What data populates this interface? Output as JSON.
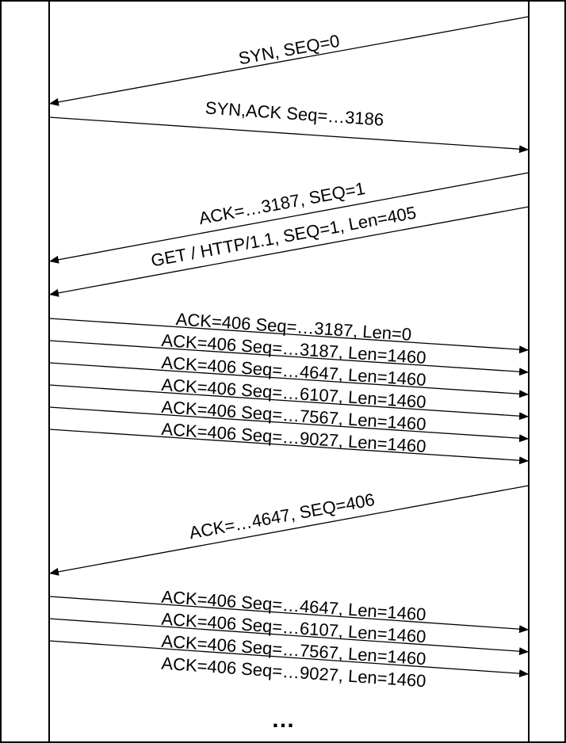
{
  "lifelines": [
    {
      "id": "client",
      "label": ""
    },
    {
      "id": "server",
      "label": ""
    }
  ],
  "messages": [
    {
      "from": "server",
      "to": "client",
      "label": "SYN, SEQ=0"
    },
    {
      "from": "client",
      "to": "server",
      "label": "SYN,ACK Seq=…3186"
    },
    {
      "from": "server",
      "to": "client",
      "label": "ACK=…3187, SEQ=1"
    },
    {
      "from": "server",
      "to": "client",
      "label": "GET / HTTP/1.1, SEQ=1, Len=405"
    },
    {
      "from": "client",
      "to": "server",
      "label": "ACK=406 Seq=…3187, Len=0"
    },
    {
      "from": "client",
      "to": "server",
      "label": "ACK=406 Seq=…3187, Len=1460"
    },
    {
      "from": "client",
      "to": "server",
      "label": "ACK=406 Seq=…4647, Len=1460"
    },
    {
      "from": "client",
      "to": "server",
      "label": "ACK=406 Seq=…6107, Len=1460"
    },
    {
      "from": "client",
      "to": "server",
      "label": "ACK=406 Seq=…7567, Len=1460"
    },
    {
      "from": "client",
      "to": "server",
      "label": "ACK=406 Seq=…9027, Len=1460"
    },
    {
      "from": "server",
      "to": "client",
      "label": "ACK=…4647, SEQ=406"
    },
    {
      "from": "client",
      "to": "server",
      "label": "ACK=406 Seq=…4647, Len=1460"
    },
    {
      "from": "client",
      "to": "server",
      "label": "ACK=406 Seq=…6107, Len=1460"
    },
    {
      "from": "client",
      "to": "server",
      "label": "ACK=406 Seq=…7567, Len=1460"
    },
    {
      "from": "client",
      "to": "server",
      "label": "ACK=406 Seq=…9027, Len=1460"
    }
  ],
  "continuation": "…"
}
